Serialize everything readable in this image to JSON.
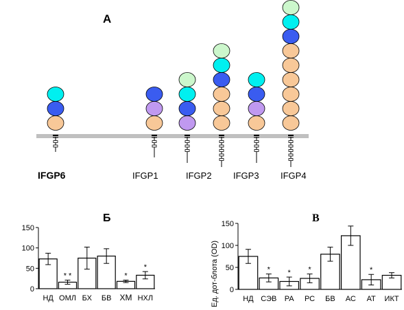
{
  "panel_a": {
    "label": "A",
    "membrane_color": "#c0c0c0",
    "domain_colors": {
      "light_green": "#ccf7cc",
      "cyan": "#00f0f0",
      "blue": "#3a5cf0",
      "lavender": "#c099f0",
      "peach": "#f8c898"
    },
    "proteins": [
      {
        "name": "IFGP6",
        "bold": true,
        "domains": [
          "cyan",
          "blue",
          "peach"
        ],
        "tail": "short"
      },
      {
        "name": "IFGP1",
        "bold": false,
        "domains": [
          "blue",
          "lavender",
          "peach"
        ],
        "tail": "sparse"
      },
      {
        "name": "IFGP2",
        "bold": false,
        "domains": [
          "light_green",
          "cyan",
          "blue",
          "lavender"
        ],
        "tail": "medium"
      },
      {
        "name": "IFGP2",
        "bold": false,
        "domains": [
          "light_green",
          "cyan",
          "blue",
          "peach",
          "peach",
          "peach"
        ],
        "tail": "long"
      },
      {
        "name": "IFGP3",
        "bold": false,
        "domains": [
          "cyan",
          "blue",
          "lavender",
          "peach"
        ],
        "tail": "medium"
      },
      {
        "name": "IFGP4",
        "bold": false,
        "domains": [
          "light_green",
          "cyan",
          "blue",
          "peach",
          "peach",
          "peach",
          "peach",
          "peach",
          "peach"
        ],
        "tail": "long"
      }
    ],
    "labels": [
      "IFGP6",
      "IFGP1",
      "IFGP2",
      "IFGP3",
      "IFGP4"
    ]
  },
  "chart_data": [
    {
      "type": "bar",
      "title": "Б",
      "ylabel": "",
      "ylim": [
        0,
        150
      ],
      "yticks": [
        "0",
        "50",
        "100",
        "150"
      ],
      "categories": [
        "НД",
        "ОМЛ",
        "БХ",
        "БВ",
        "ХМ",
        "НХЛ"
      ],
      "values": [
        73,
        16,
        75,
        80,
        18,
        33
      ],
      "errors": [
        14,
        5,
        27,
        18,
        3,
        9
      ],
      "markers": [
        "",
        "* *",
        "",
        "",
        "*",
        "*"
      ]
    },
    {
      "type": "bar",
      "title": "В",
      "ylabel": "Ед. дот-блота (OD)",
      "ylim": [
        0,
        150
      ],
      "yticks": [
        "0",
        "50",
        "100",
        "150"
      ],
      "categories": [
        "НД",
        "СЭВ",
        "РА",
        "РС",
        "БВ",
        "АС",
        "АТ",
        "ИКТ"
      ],
      "values": [
        75,
        26,
        18,
        25,
        80,
        122,
        22,
        32
      ],
      "errors": [
        16,
        9,
        10,
        10,
        16,
        22,
        12,
        6
      ],
      "markers": [
        "",
        "*",
        "*",
        "*",
        "",
        "",
        "*",
        ""
      ]
    }
  ]
}
